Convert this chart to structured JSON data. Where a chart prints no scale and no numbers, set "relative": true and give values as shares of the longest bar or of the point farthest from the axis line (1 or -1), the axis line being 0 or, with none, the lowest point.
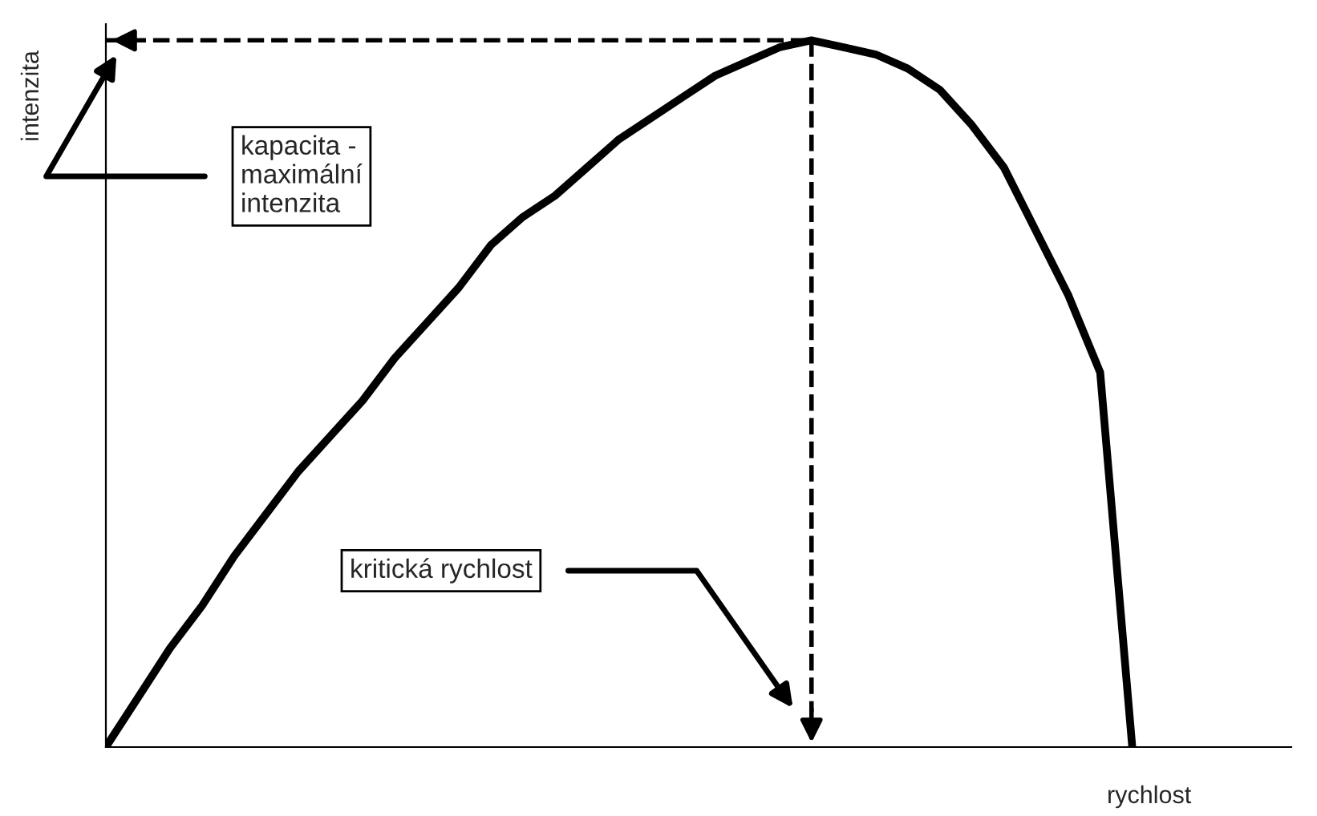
{
  "chart_data": {
    "type": "line",
    "relative": true,
    "xlabel": "rychlost",
    "ylabel": "intenzita",
    "categories": [
      null,
      null,
      null,
      null,
      null,
      null,
      null,
      null,
      null,
      null,
      null,
      null,
      null,
      null,
      null,
      null,
      null,
      null,
      null,
      null,
      null,
      null,
      null,
      null,
      null,
      null,
      null,
      null,
      null,
      null,
      null,
      null,
      null
    ],
    "series": [
      {
        "color": "#000000",
        "values": [
          0,
          0.07,
          0.14,
          0.2,
          0.27,
          0.33,
          0.39,
          0.44,
          0.49,
          0.55,
          0.6,
          0.65,
          0.71,
          0.75,
          0.78,
          0.82,
          0.86,
          0.89,
          0.92,
          0.95,
          0.97,
          0.99,
          1,
          0.99,
          0.98,
          0.96,
          0.93,
          0.88,
          0.82,
          0.73,
          0.64,
          0.53,
          0
        ]
      }
    ],
    "annotations": [
      "kapacita -\nmaximální\nintenzita",
      "kritická rychlost"
    ],
    "ref_lines": [
      {
        "axis": "y",
        "value": 1,
        "color": "#000000",
        "line_style": "dashed"
      }
    ],
    "tick_labels": false,
    "grid": false,
    "legend": false,
    "marker": "none",
    "line_style": "solid"
  }
}
